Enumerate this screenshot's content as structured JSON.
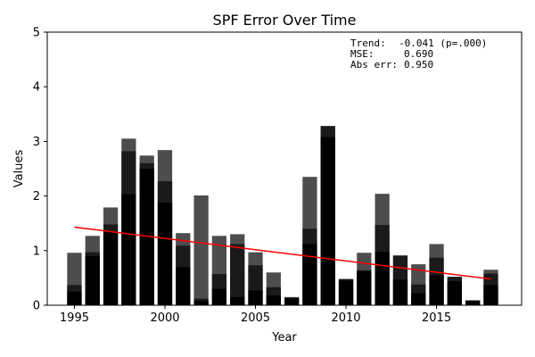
{
  "chart_data": {
    "type": "bar",
    "title": "SPF Error Over Time",
    "xlabel": "Year",
    "ylabel": "Values",
    "xlim": [
      1993.5,
      2019.7
    ],
    "ylim": [
      0,
      5
    ],
    "xticks": [
      1995,
      2000,
      2005,
      2010,
      2015
    ],
    "yticks": [
      0,
      1,
      2,
      3,
      4,
      5
    ],
    "grid": false,
    "categories": [
      1995,
      1996,
      1997,
      1998,
      1999,
      2000,
      2001,
      2002,
      2003,
      2004,
      2005,
      2006,
      2007,
      2008,
      2009,
      2010,
      2011,
      2012,
      2013,
      2014,
      2015,
      2016,
      2017,
      2018
    ],
    "series": [
      {
        "color": "#000000",
        "values": [
          0.25,
          0.9,
          1.35,
          2.03,
          2.5,
          1.88,
          0.7,
          0.08,
          0.3,
          0.15,
          0.27,
          0.18,
          0.12,
          1.12,
          3.08,
          0.45,
          0.62,
          0.98,
          0.47,
          0.22,
          0.55,
          0.44,
          0.08,
          0.37
        ]
      },
      {
        "color": "#1a1a1a",
        "values": [
          0.37,
          0.97,
          1.48,
          2.82,
          2.6,
          2.27,
          1.09,
          0.12,
          0.57,
          1.12,
          0.73,
          0.33,
          0.14,
          1.4,
          3.28,
          0.48,
          0.64,
          1.47,
          0.91,
          0.38,
          0.87,
          0.52,
          0.09,
          0.58
        ]
      },
      {
        "color": "#4d4d4d",
        "values": [
          0.96,
          1.27,
          1.79,
          3.05,
          2.74,
          2.84,
          1.32,
          2.01,
          1.27,
          1.3,
          0.97,
          0.6,
          0.15,
          2.35,
          3.28,
          0.48,
          0.96,
          2.04,
          0.91,
          0.75,
          1.12,
          0.52,
          0.09,
          0.65
        ]
      }
    ],
    "trend": {
      "color": "#ff0000",
      "x": [
        1995,
        2018
      ],
      "y": [
        1.43,
        0.48
      ]
    },
    "annotation": {
      "trend_label": "Trend:",
      "trend_value": "-0.041 (p=.000)",
      "mse_label": "MSE:",
      "mse_value": "0.690",
      "abs_label": "Abs err:",
      "abs_value": "0.950"
    }
  }
}
